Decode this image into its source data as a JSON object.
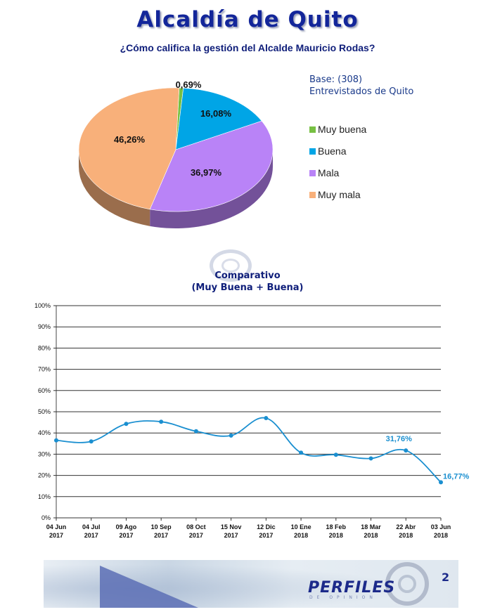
{
  "header": {
    "title": "Alcaldía de Quito",
    "subtitle": "¿Cómo califica la gestión del Alcalde Mauricio Rodas?"
  },
  "base": {
    "line1": "Base: (308)",
    "line2": "Entrevistados de Quito"
  },
  "comparison": {
    "title_line1": "Comparativo",
    "title_line2": "(Muy Buena + Buena)"
  },
  "footer": {
    "logo_text": "PERFILES",
    "logo_sub": "DE OPINION",
    "page_number": "2"
  },
  "colors": {
    "muy_buena": "#77c043",
    "buena": "#00a5e6",
    "mala": "#b983f7",
    "muy_mala": "#f8b07a",
    "line": "#1a8fd0",
    "title": "#13269a"
  },
  "chart_data": [
    {
      "type": "pie",
      "slices": [
        {
          "label": "Muy buena",
          "value": 0.69,
          "display": "0,69%",
          "color": "#77c043"
        },
        {
          "label": "Buena",
          "value": 16.08,
          "display": "16,08%",
          "color": "#00a5e6"
        },
        {
          "label": "Mala",
          "value": 36.97,
          "display": "36,97%",
          "color": "#b983f7"
        },
        {
          "label": "Muy mala",
          "value": 46.26,
          "display": "46,26%",
          "color": "#f8b07a"
        }
      ]
    },
    {
      "type": "line",
      "categories": [
        [
          "04 Jun",
          "2017"
        ],
        [
          "04 Jul",
          "2017"
        ],
        [
          "09 Ago",
          "2017"
        ],
        [
          "10 Sep",
          "2017"
        ],
        [
          "08 Oct",
          "2017"
        ],
        [
          "15 Nov",
          "2017"
        ],
        [
          "12 Dic",
          "2017"
        ],
        [
          "10 Ene",
          "2018"
        ],
        [
          "18 Feb",
          "2018"
        ],
        [
          "18 Mar",
          "2018"
        ],
        [
          "22 Abr",
          "2018"
        ],
        [
          "03 Jun",
          "2018"
        ]
      ],
      "series": [
        {
          "values": [
            36.5,
            36.0,
            44.3,
            45.3,
            40.8,
            38.8,
            47.0,
            30.7,
            29.7,
            28.0,
            31.76,
            16.77
          ]
        }
      ],
      "data_labels": [
        {
          "index": 10,
          "text": "31,76%"
        },
        {
          "index": 11,
          "text": "16,77%"
        }
      ],
      "yticks": [
        "0%",
        "10%",
        "20%",
        "30%",
        "40%",
        "50%",
        "60%",
        "70%",
        "80%",
        "90%",
        "100%"
      ],
      "ylim": [
        0,
        100
      ],
      "grid": true
    }
  ]
}
